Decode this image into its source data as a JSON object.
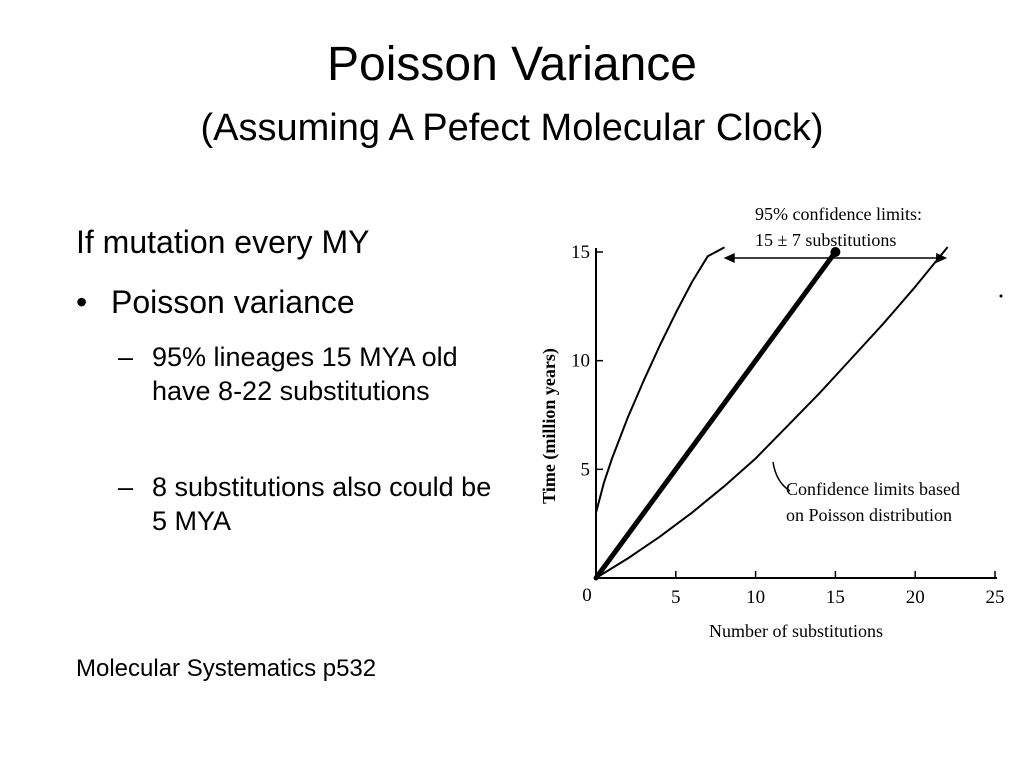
{
  "slide": {
    "title": "Poisson Variance",
    "subtitle": "(Assuming A Pefect Molecular Clock)",
    "intro": "If mutation every MY",
    "bullet": {
      "marker": "•",
      "text": "Poisson variance"
    },
    "subbullets": [
      {
        "marker": "–",
        "text": "95% lineages 15 MYA old have 8-22 substitutions"
      },
      {
        "marker": "–",
        "text": "8 substitutions also could be 5 MYA"
      }
    ],
    "source": "Molecular Systematics p532"
  },
  "chart_data": {
    "type": "line",
    "xlabel": "Number of substitutions",
    "ylabel": "Time (million years)",
    "xlim": [
      0,
      25
    ],
    "ylim": [
      0,
      15
    ],
    "x_ticks": [
      0,
      5,
      10,
      15,
      20,
      25
    ],
    "y_ticks": [
      5,
      10,
      15
    ],
    "origin_label": "0",
    "series": [
      {
        "x": [
          0,
          15
        ],
        "y": [
          0,
          15
        ],
        "style": "thick"
      },
      {
        "x": [
          0,
          0.5,
          1,
          2,
          3,
          4,
          5,
          6,
          7,
          8
        ],
        "y": [
          3,
          4.4,
          5.5,
          7.4,
          9.1,
          10.7,
          12.2,
          13.6,
          14.8,
          15.2
        ],
        "style": "thin"
      },
      {
        "x": [
          0,
          2,
          4,
          6,
          8,
          10,
          12,
          14,
          16,
          18,
          20,
          22
        ],
        "y": [
          0,
          0.9,
          1.9,
          3.0,
          4.2,
          5.5,
          7.0,
          8.5,
          10.1,
          11.7,
          13.4,
          15.2
        ],
        "style": "thin"
      }
    ],
    "point": {
      "x": 15,
      "y": 15
    },
    "confidence_interval": {
      "from": 8,
      "to": 22,
      "y": 15
    },
    "annotations": [
      {
        "lines": [
          "95% confidence limits:",
          "15 ± 7 substitutions"
        ]
      },
      {
        "lines": [
          "Confidence limits based",
          "on Poisson distribution"
        ]
      }
    ]
  }
}
